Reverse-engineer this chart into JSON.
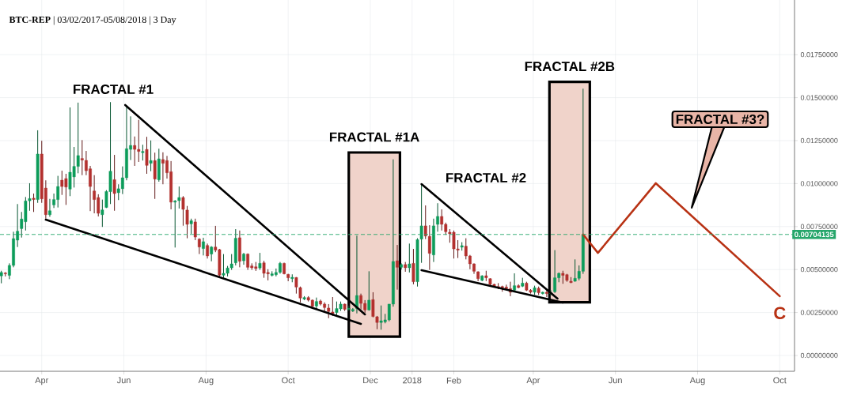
{
  "chart_data": {
    "type": "candlestick",
    "title": "**BTC-REP** | 03/02/2017-05/08/2018 | 3 Day",
    "x": [
      "2017-03-02",
      "2017-03-05",
      "2017-03-08",
      "2017-03-11",
      "2017-03-14",
      "2017-03-17",
      "2017-03-20",
      "2017-03-23",
      "2017-03-26",
      "2017-03-29",
      "2017-04-01",
      "2017-04-04",
      "2017-04-07",
      "2017-04-10",
      "2017-04-13",
      "2017-04-16",
      "2017-04-19",
      "2017-04-22",
      "2017-04-25",
      "2017-04-28",
      "2017-05-01",
      "2017-05-04",
      "2017-05-07",
      "2017-05-10",
      "2017-05-13",
      "2017-05-16",
      "2017-05-19",
      "2017-05-22",
      "2017-05-25",
      "2017-05-28",
      "2017-05-31",
      "2017-06-03",
      "2017-06-06",
      "2017-06-09",
      "2017-06-12",
      "2017-06-15",
      "2017-06-18",
      "2017-06-21",
      "2017-06-24",
      "2017-06-27",
      "2017-06-30",
      "2017-07-03",
      "2017-07-06",
      "2017-07-09",
      "2017-07-12",
      "2017-07-15",
      "2017-07-18",
      "2017-07-21",
      "2017-07-24",
      "2017-07-27",
      "2017-07-30",
      "2017-08-02",
      "2017-08-05",
      "2017-08-08",
      "2017-08-11",
      "2017-08-14",
      "2017-08-17",
      "2017-08-20",
      "2017-08-23",
      "2017-08-26",
      "2017-08-29",
      "2017-09-01",
      "2017-09-04",
      "2017-09-07",
      "2017-09-10",
      "2017-09-13",
      "2017-09-16",
      "2017-09-19",
      "2017-09-22",
      "2017-09-25",
      "2017-09-28",
      "2017-10-01",
      "2017-10-04",
      "2017-10-07",
      "2017-10-10",
      "2017-10-13",
      "2017-10-16",
      "2017-10-19",
      "2017-10-22",
      "2017-10-25",
      "2017-10-28",
      "2017-10-31",
      "2017-11-03",
      "2017-11-06",
      "2017-11-09",
      "2017-11-12",
      "2017-11-15",
      "2017-11-18",
      "2017-11-21",
      "2017-11-24",
      "2017-11-27",
      "2017-11-30",
      "2017-12-03",
      "2017-12-06",
      "2017-12-09",
      "2017-12-12",
      "2017-12-15",
      "2017-12-18",
      "2017-12-21",
      "2017-12-24",
      "2017-12-27",
      "2017-12-30",
      "2018-01-02",
      "2018-01-05",
      "2018-01-08",
      "2018-01-11",
      "2018-01-14",
      "2018-01-17",
      "2018-01-20",
      "2018-01-23",
      "2018-01-26",
      "2018-01-29",
      "2018-02-01",
      "2018-02-04",
      "2018-02-07",
      "2018-02-10",
      "2018-02-13",
      "2018-02-16",
      "2018-02-19",
      "2018-02-22",
      "2018-02-25",
      "2018-02-28",
      "2018-03-03",
      "2018-03-06",
      "2018-03-09",
      "2018-03-12",
      "2018-03-15",
      "2018-03-18",
      "2018-03-21",
      "2018-03-24",
      "2018-03-27",
      "2018-03-30",
      "2018-04-02",
      "2018-04-05",
      "2018-04-08",
      "2018-04-11",
      "2018-04-14",
      "2018-04-17",
      "2018-04-20",
      "2018-04-23",
      "2018-04-26",
      "2018-04-29",
      "2018-05-02",
      "2018-05-05",
      "2018-05-08"
    ],
    "ohlc": [
      [
        0.00463,
        0.00493,
        0.0042,
        0.00483
      ],
      [
        0.0048,
        0.00485,
        0.0046,
        0.00475
      ],
      [
        0.00466,
        0.00536,
        0.00444,
        0.00524
      ],
      [
        0.00524,
        0.0072,
        0.00513,
        0.0068
      ],
      [
        0.00671,
        0.00881,
        0.00631,
        0.00723
      ],
      [
        0.00738,
        0.00835,
        0.00686,
        0.00794
      ],
      [
        0.00778,
        0.00922,
        0.00727,
        0.00899
      ],
      [
        0.009,
        0.01002,
        0.00842,
        0.00913
      ],
      [
        0.00915,
        0.00942,
        0.00835,
        0.00907
      ],
      [
        0.00907,
        0.0131,
        0.00888,
        0.01172
      ],
      [
        0.01172,
        0.01249,
        0.00888,
        0.00911
      ],
      [
        0.00974,
        0.01019,
        0.00796,
        0.00819
      ],
      [
        0.00819,
        0.00911,
        0.00807,
        0.00842
      ],
      [
        0.00876,
        0.00942,
        0.00858,
        0.00907
      ],
      [
        0.00907,
        0.01045,
        0.00861,
        0.00983
      ],
      [
        0.0102,
        0.01075,
        0.00934,
        0.00983
      ],
      [
        0.01029,
        0.01057,
        0.00876,
        0.0098
      ],
      [
        0.00968,
        0.01443,
        0.00927,
        0.01066
      ],
      [
        0.01039,
        0.01213,
        0.00977,
        0.011
      ],
      [
        0.011,
        0.01471,
        0.0106,
        0.01163
      ],
      [
        0.01146,
        0.01253,
        0.01049,
        0.01137
      ],
      [
        0.01135,
        0.0119,
        0.01049,
        0.01075
      ],
      [
        0.01086,
        0.01103,
        0.0084,
        0.00983
      ],
      [
        0.00957,
        0.01049,
        0.00827,
        0.00907
      ],
      [
        0.00919,
        0.00938,
        0.00809,
        0.00827
      ],
      [
        0.00819,
        0.00907,
        0.00748,
        0.00847
      ],
      [
        0.00861,
        0.00962,
        0.00858,
        0.00954
      ],
      [
        0.00953,
        0.01474,
        0.00881,
        0.01072
      ],
      [
        0.01023,
        0.01167,
        0.00842,
        0.00942
      ],
      [
        0.00947,
        0.00996,
        0.00904,
        0.0097
      ],
      [
        0.0097,
        0.011,
        0.00939,
        0.01034
      ],
      [
        0.01034,
        0.01455,
        0.01019,
        0.01203
      ],
      [
        0.01199,
        0.01391,
        0.01137,
        0.01222
      ],
      [
        0.01222,
        0.01274,
        0.01103,
        0.01199
      ],
      [
        0.01199,
        0.01371,
        0.01126,
        0.01187
      ],
      [
        0.0118,
        0.01226,
        0.01134,
        0.01187
      ],
      [
        0.01199,
        0.01272,
        0.01057,
        0.01106
      ],
      [
        0.01118,
        0.01251,
        0.01072,
        0.01134
      ],
      [
        0.01134,
        0.0118,
        0.00911,
        0.01026
      ],
      [
        0.01022,
        0.01203,
        0.01011,
        0.01144
      ],
      [
        0.0114,
        0.01182,
        0.00996,
        0.01118
      ],
      [
        0.01134,
        0.01161,
        0.01029,
        0.01063
      ],
      [
        0.01069,
        0.01131,
        0.0085,
        0.00892
      ],
      [
        0.00892,
        0.00904,
        0.00628,
        0.00899
      ],
      [
        0.00901,
        0.00983,
        0.00855,
        0.00919
      ],
      [
        0.00919,
        0.00927,
        0.00755,
        0.0085
      ],
      [
        0.00846,
        0.0087,
        0.00682,
        0.00763
      ],
      [
        0.00766,
        0.00796,
        0.00708,
        0.00784
      ],
      [
        0.00777,
        0.00796,
        0.00671,
        0.00689
      ],
      [
        0.00677,
        0.00682,
        0.0059,
        0.00631
      ],
      [
        0.00622,
        0.00685,
        0.00582,
        0.00662
      ],
      [
        0.0064,
        0.00651,
        0.00564,
        0.00579
      ],
      [
        0.0059,
        0.00636,
        0.00548,
        0.00631
      ],
      [
        0.00631,
        0.00754,
        0.00601,
        0.00613
      ],
      [
        0.00616,
        0.0062,
        0.00456,
        0.00467
      ],
      [
        0.00467,
        0.0059,
        0.00452,
        0.00478
      ],
      [
        0.00478,
        0.00521,
        0.0046,
        0.00509
      ],
      [
        0.0051,
        0.0059,
        0.00498,
        0.00533
      ],
      [
        0.00539,
        0.00735,
        0.00524,
        0.00682
      ],
      [
        0.00685,
        0.00727,
        0.00513,
        0.00548
      ],
      [
        0.00551,
        0.00597,
        0.00528,
        0.0059
      ],
      [
        0.0059,
        0.00594,
        0.00498,
        0.00513
      ],
      [
        0.00521,
        0.00536,
        0.00498,
        0.0051
      ],
      [
        0.00516,
        0.00544,
        0.00492,
        0.00506
      ],
      [
        0.00509,
        0.00597,
        0.00498,
        0.00536
      ],
      [
        0.00539,
        0.00551,
        0.00452,
        0.00478
      ],
      [
        0.00483,
        0.00502,
        0.00437,
        0.00475
      ],
      [
        0.00466,
        0.0049,
        0.0046,
        0.00475
      ],
      [
        0.0047,
        0.00506,
        0.0046,
        0.00483
      ],
      [
        0.00484,
        0.00544,
        0.00476,
        0.00536
      ],
      [
        0.00536,
        0.0054,
        0.00472,
        0.00475
      ],
      [
        0.00472,
        0.00475,
        0.00432,
        0.00452
      ],
      [
        0.00447,
        0.00472,
        0.00426,
        0.00455
      ],
      [
        0.00454,
        0.00456,
        0.0036,
        0.00398
      ],
      [
        0.00395,
        0.00401,
        0.00309,
        0.00334
      ],
      [
        0.00328,
        0.00345,
        0.00322,
        0.00337
      ],
      [
        0.00337,
        0.00345,
        0.00314,
        0.00322
      ],
      [
        0.00322,
        0.00326,
        0.00279,
        0.00286
      ],
      [
        0.00288,
        0.00337,
        0.00268,
        0.00314
      ],
      [
        0.00317,
        0.00325,
        0.00291,
        0.00299
      ],
      [
        0.00299,
        0.00309,
        0.00253,
        0.00279
      ],
      [
        0.00276,
        0.00299,
        0.00217,
        0.00256
      ],
      [
        0.00253,
        0.0034,
        0.0023,
        0.00244
      ],
      [
        0.0025,
        0.00314,
        0.00227,
        0.00273
      ],
      [
        0.00271,
        0.00314,
        0.00259,
        0.00299
      ],
      [
        0.00299,
        0.00302,
        0.00259,
        0.00268
      ],
      [
        0.00268,
        0.0029,
        0.0026,
        0.00275
      ],
      [
        0.00259,
        0.00276,
        0.00253,
        0.00268
      ],
      [
        0.00273,
        0.00697,
        0.00245,
        0.00349
      ],
      [
        0.00349,
        0.0036,
        0.00268,
        0.00303
      ],
      [
        0.00303,
        0.00322,
        0.00248,
        0.00265
      ],
      [
        0.00265,
        0.0049,
        0.00261,
        0.00322
      ],
      [
        0.00325,
        0.00368,
        0.00222,
        0.00227
      ],
      [
        0.00225,
        0.0023,
        0.00153,
        0.00192
      ],
      [
        0.00192,
        0.00291,
        0.0015,
        0.00202
      ],
      [
        0.00196,
        0.00242,
        0.00187,
        0.00207
      ],
      [
        0.00207,
        0.00299,
        0.00199,
        0.00299
      ],
      [
        0.00299,
        0.01141,
        0.00284,
        0.00547
      ],
      [
        0.00551,
        0.00643,
        0.00383,
        0.00513
      ],
      [
        0.00513,
        0.00536,
        0.005,
        0.00529
      ],
      [
        0.00529,
        0.00544,
        0.00487,
        0.0051
      ],
      [
        0.0051,
        0.00651,
        0.00483,
        0.00533
      ],
      [
        0.00536,
        0.0062,
        0.00414,
        0.00429
      ],
      [
        0.00429,
        0.00682,
        0.00401,
        0.00674
      ],
      [
        0.00677,
        0.00996,
        0.00539,
        0.00754
      ],
      [
        0.00754,
        0.00873,
        0.00677,
        0.00695
      ],
      [
        0.00693,
        0.00758,
        0.00498,
        0.00594
      ],
      [
        0.00585,
        0.00796,
        0.00544,
        0.00754
      ],
      [
        0.00763,
        0.00886,
        0.0072,
        0.00809
      ],
      [
        0.00809,
        0.0085,
        0.00727,
        0.00763
      ],
      [
        0.00763,
        0.00773,
        0.00702,
        0.0072
      ],
      [
        0.00717,
        0.00735,
        0.00656,
        0.00708
      ],
      [
        0.00717,
        0.00727,
        0.00564,
        0.0062
      ],
      [
        0.0062,
        0.00671,
        0.00567,
        0.00613
      ],
      [
        0.0063,
        0.00659,
        0.0061,
        0.00639
      ],
      [
        0.00636,
        0.00682,
        0.00559,
        0.00579
      ],
      [
        0.00579,
        0.00585,
        0.00502,
        0.00533
      ],
      [
        0.00533,
        0.00536,
        0.00475,
        0.0049
      ],
      [
        0.00487,
        0.0049,
        0.00432,
        0.00447
      ],
      [
        0.00437,
        0.00467,
        0.00432,
        0.00463
      ],
      [
        0.00464,
        0.00493,
        0.00433,
        0.00452
      ],
      [
        0.00447,
        0.00449,
        0.00406,
        0.00414
      ],
      [
        0.00414,
        0.00417,
        0.00398,
        0.00404
      ],
      [
        0.00401,
        0.00421,
        0.00386,
        0.00395
      ],
      [
        0.00401,
        0.00406,
        0.00371,
        0.00394
      ],
      [
        0.00398,
        0.00412,
        0.00383,
        0.00389
      ],
      [
        0.00389,
        0.00429,
        0.00345,
        0.00368
      ],
      [
        0.0038,
        0.00478,
        0.00375,
        0.00406
      ],
      [
        0.00406,
        0.00414,
        0.00391,
        0.00395
      ],
      [
        0.00403,
        0.00452,
        0.00398,
        0.00421
      ],
      [
        0.00421,
        0.00429,
        0.00375,
        0.0038
      ],
      [
        0.0038,
        0.00386,
        0.0036,
        0.00368
      ],
      [
        0.00368,
        0.00406,
        0.00352,
        0.00394
      ],
      [
        0.00391,
        0.00401,
        0.00352,
        0.00365
      ],
      [
        0.0036,
        0.00371,
        0.00355,
        0.00368
      ],
      [
        0.00368,
        0.0038,
        0.0034,
        0.0036
      ],
      [
        0.0036,
        0.0038,
        0.0035,
        0.00365
      ],
      [
        0.00371,
        0.00613,
        0.00364,
        0.00452
      ],
      [
        0.00452,
        0.00483,
        0.00426,
        0.00478
      ],
      [
        0.00478,
        0.00493,
        0.00417,
        0.00466
      ],
      [
        0.0047,
        0.00475,
        0.00429,
        0.00437
      ],
      [
        0.00432,
        0.00456,
        0.00421,
        0.00424
      ],
      [
        0.00432,
        0.00559,
        0.00429,
        0.00449
      ],
      [
        0.00449,
        0.00524,
        0.00437,
        0.0049
      ],
      [
        0.0049,
        0.01552,
        0.00475,
        0.00704135
      ]
    ],
    "colors": [
      "#0c9c5a",
      "#b3302e",
      "#0c9c5a",
      "#0c9c5a",
      "#0c9c5a",
      "#0c9c5a",
      "#0c9c5a",
      "#0c9c5a",
      "#b3302e",
      "#0c9c5a",
      "#b3302e",
      "#b3302e",
      "#0c9c5a",
      "#0c9c5a",
      "#0c9c5a",
      "#b3302e",
      "#b3302e",
      "#0c9c5a",
      "#0c9c5a",
      "#0c9c5a",
      "#b3302e",
      "#b3302e",
      "#b3302e",
      "#b3302e",
      "#b3302e",
      "#0c9c5a",
      "#0c9c5a",
      "#0c9c5a",
      "#b3302e",
      "#0c9c5a",
      "#0c9c5a",
      "#0c9c5a",
      "#0c9c5a",
      "#b3302e",
      "#b3302e",
      "#0c9c5a",
      "#b3302e",
      "#0c9c5a",
      "#b3302e",
      "#0c9c5a",
      "#b3302e",
      "#b3302e",
      "#b3302e",
      "#0c9c5a",
      "#0c9c5a",
      "#b3302e",
      "#b3302e",
      "#0c9c5a",
      "#b3302e",
      "#b3302e",
      "#0c9c5a",
      "#b3302e",
      "#0c9c5a",
      "#b3302e",
      "#b3302e",
      "#0c9c5a",
      "#0c9c5a",
      "#0c9c5a",
      "#0c9c5a",
      "#b3302e",
      "#0c9c5a",
      "#b3302e",
      "#b3302e",
      "#b3302e",
      "#0c9c5a",
      "#b3302e",
      "#b3302e",
      "#0c9c5a",
      "#0c9c5a",
      "#0c9c5a",
      "#b3302e",
      "#b3302e",
      "#0c9c5a",
      "#b3302e",
      "#b3302e",
      "#0c9c5a",
      "#b3302e",
      "#b3302e",
      "#0c9c5a",
      "#b3302e",
      "#b3302e",
      "#b3302e",
      "#b3302e",
      "#0c9c5a",
      "#0c9c5a",
      "#b3302e",
      "#0c9c5a",
      "#0c9c5a",
      "#0c9c5a",
      "#b3302e",
      "#b3302e",
      "#0c9c5a",
      "#b3302e",
      "#b3302e",
      "#0c9c5a",
      "#0c9c5a",
      "#0c9c5a",
      "#0c9c5a",
      "#b3302e",
      "#0c9c5a",
      "#b3302e",
      "#0c9c5a",
      "#b3302e",
      "#0c9c5a",
      "#0c9c5a",
      "#b3302e",
      "#b3302e",
      "#0c9c5a",
      "#0c9c5a",
      "#b3302e",
      "#b3302e",
      "#b3302e",
      "#b3302e",
      "#b3302e",
      "#0c9c5a",
      "#b3302e",
      "#b3302e",
      "#b3302e",
      "#b3302e",
      "#0c9c5a",
      "#b3302e",
      "#b3302e",
      "#b3302e",
      "#b3302e",
      "#b3302e",
      "#b3302e",
      "#b3302e",
      "#0c9c5a",
      "#b3302e",
      "#0c9c5a",
      "#b3302e",
      "#b3302e",
      "#0c9c5a",
      "#b3302e",
      "#0c9c5a",
      "#b3302e",
      "#0c9c5a",
      "#0c9c5a",
      "#0c9c5a",
      "#b3302e",
      "#b3302e",
      "#b3302e",
      "#0c9c5a",
      "#0c9c5a",
      "#0c9c5a"
    ],
    "series": [
      {
        "type": "line",
        "color": "#000000",
        "x": [
          "2017-06-02",
          "2017-11-27"
        ],
        "values": [
          0.01457,
          0.00239
        ]
      },
      {
        "type": "line",
        "color": "#000000",
        "x": [
          "2017-04-04",
          "2017-11-24"
        ],
        "values": [
          0.0079,
          0.00184
        ]
      },
      {
        "type": "line",
        "color": "#000000",
        "x": [
          "2018-01-08",
          "2018-04-19"
        ],
        "values": [
          0.00997,
          0.00331
        ]
      },
      {
        "type": "line",
        "color": "#000000",
        "x": [
          "2018-01-08",
          "2018-04-23"
        ],
        "values": [
          0.00496,
          0.00308
        ]
      },
      {
        "type": "line",
        "color": "#b83214",
        "x": [
          "2018-05-08",
          "2018-05-19",
          "2018-07-01",
          "2018-10-01"
        ],
        "values": [
          0.00704,
          0.00597,
          0.01002,
          0.00345
        ]
      }
    ],
    "bands": [
      {
        "axis": "x",
        "from": "2017-11-15",
        "to": "2017-12-23",
        "label": "FRACTAL #1A",
        "color": "#f0d3ca"
      },
      {
        "axis": "x",
        "from": "2018-04-13",
        "to": "2018-05-13",
        "label": "FRACTAL #2B",
        "color": "#f0d3ca"
      }
    ],
    "ref_lines": [
      {
        "axis": "y",
        "value": 0.00704135,
        "label": "0.00704135",
        "color": "#26a66b",
        "line_style": "dashed"
      }
    ],
    "annotations": [
      "FRACTAL #1",
      "FRACTAL #2",
      "FRACTAL #3?",
      "C"
    ],
    "xlim": [
      "2017-03-01",
      "2018-10-12"
    ],
    "ylim": [
      -0.00092,
      0.02068
    ],
    "xticks": [
      {
        "value": "2017-04-01",
        "label": "Apr"
      },
      {
        "value": "2017-06-01",
        "label": "Jun"
      },
      {
        "value": "2017-08-01",
        "label": "Aug"
      },
      {
        "value": "2017-10-01",
        "label": "Oct"
      },
      {
        "value": "2017-12-01",
        "label": "Dec"
      },
      {
        "value": "2018-01-01",
        "label": "2018"
      },
      {
        "value": "2018-02-01",
        "label": "Feb"
      },
      {
        "value": "2018-04-01",
        "label": "Apr"
      },
      {
        "value": "2018-06-01",
        "label": "Jun"
      },
      {
        "value": "2018-08-01",
        "label": "Aug"
      },
      {
        "value": "2018-10-01",
        "label": "Oct"
      }
    ],
    "yticks": [
      {
        "value": 0,
        "label": "0.00000000"
      },
      {
        "value": 0.0025,
        "label": "0.00250000"
      },
      {
        "value": 0.005,
        "label": "0.00500000"
      },
      {
        "value": 0.0075,
        "label": "0.00750000"
      },
      {
        "value": 0.01,
        "label": "0.01000000"
      },
      {
        "value": 0.0125,
        "label": "0.01250000"
      },
      {
        "value": 0.015,
        "label": "0.01500000"
      },
      {
        "value": 0.0175,
        "label": "0.01750000"
      }
    ],
    "grid": true
  }
}
